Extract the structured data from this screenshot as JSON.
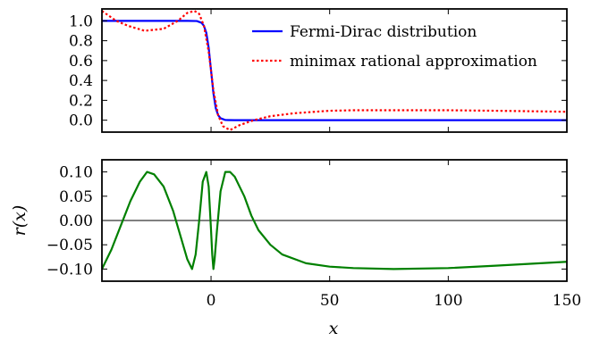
{
  "chart_data": [
    {
      "type": "line",
      "panel": "top",
      "xlim": [
        -46,
        150
      ],
      "ylim": [
        -0.12,
        1.12
      ],
      "yticks": [
        "0.0",
        "0.2",
        "0.4",
        "0.6",
        "0.8",
        "1.0"
      ],
      "xticks": [
        0,
        50,
        100,
        150
      ],
      "ylabel": "",
      "xlabel": "",
      "legend": "top-right",
      "grid": false,
      "series": [
        {
          "name": "Fermi-Dirac distribution",
          "color": "#0000ff",
          "style": "solid",
          "x": [
            -46,
            -30,
            -20,
            -10,
            -6,
            -4,
            -3,
            -2,
            -1,
            0,
            1,
            2,
            3,
            4,
            6,
            10,
            20,
            50,
            100,
            150
          ],
          "y": [
            1.0,
            1.0,
            1.0,
            1.0,
            0.998,
            0.98,
            0.95,
            0.88,
            0.73,
            0.5,
            0.27,
            0.12,
            0.05,
            0.02,
            0.002,
            0.0,
            0.0,
            0.0,
            0.0,
            0.0
          ]
        },
        {
          "name": "minimax rational approximation",
          "color": "#ff0000",
          "style": "dotted",
          "x": [
            -46,
            -40,
            -35,
            -28,
            -20,
            -14,
            -10,
            -7,
            -5,
            -3,
            -1,
            0,
            1,
            3,
            5,
            8,
            12,
            18,
            25,
            35,
            50,
            60,
            77,
            100,
            120,
            150
          ],
          "y": [
            1.1,
            1.0,
            0.95,
            0.9,
            0.92,
            1.0,
            1.08,
            1.1,
            1.07,
            0.95,
            0.69,
            0.5,
            0.3,
            0.05,
            -0.06,
            -0.1,
            -0.05,
            0.0,
            0.04,
            0.07,
            0.095,
            0.1,
            0.1,
            0.1,
            0.095,
            0.085
          ]
        }
      ]
    },
    {
      "type": "line",
      "panel": "bottom",
      "xlim": [
        -46,
        150
      ],
      "ylim": [
        -0.125,
        0.125
      ],
      "yticks": [
        "0.10",
        "0.05",
        "0.00",
        "−0.05",
        "−0.10"
      ],
      "xticks": [
        "0",
        "50",
        "100",
        "150"
      ],
      "ylabel": "r(x)",
      "xlabel": "x",
      "grid": false,
      "zero_line": true,
      "series": [
        {
          "name": "",
          "color": "#008000",
          "style": "solid",
          "x": [
            -46,
            -42,
            -38,
            -34,
            -30,
            -27,
            -24,
            -20,
            -16,
            -13,
            -10,
            -8,
            -6.5,
            -5,
            -3.5,
            -2,
            -1,
            0,
            0.5,
            1,
            1.5,
            2.5,
            4,
            6,
            8,
            10,
            12,
            14,
            17,
            20,
            25,
            30,
            40,
            50,
            60,
            77,
            100,
            120,
            150
          ],
          "y": [
            -0.1,
            -0.06,
            -0.01,
            0.04,
            0.08,
            0.1,
            0.095,
            0.07,
            0.02,
            -0.03,
            -0.08,
            -0.1,
            -0.07,
            0.0,
            0.08,
            0.1,
            0.07,
            -0.02,
            -0.07,
            -0.1,
            -0.08,
            -0.02,
            0.06,
            0.1,
            0.1,
            0.09,
            0.07,
            0.05,
            0.01,
            -0.02,
            -0.05,
            -0.07,
            -0.088,
            -0.095,
            -0.098,
            -0.1,
            -0.098,
            -0.093,
            -0.085
          ]
        }
      ]
    }
  ]
}
